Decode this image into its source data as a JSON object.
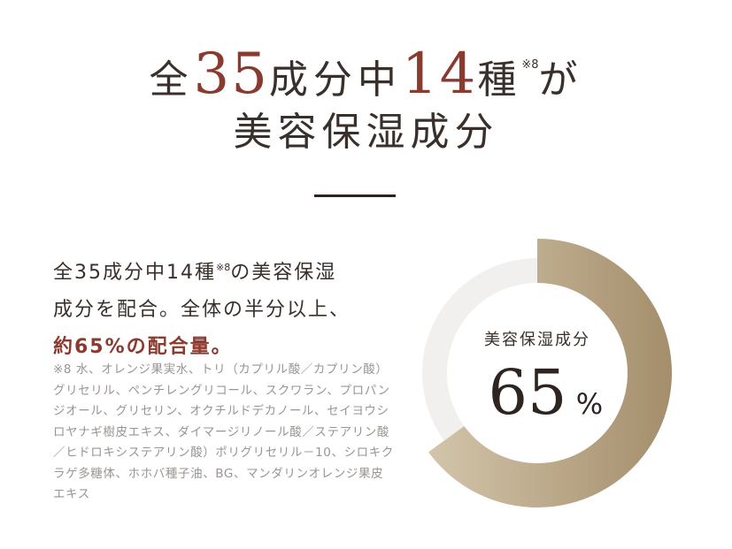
{
  "headline": {
    "line1_prefix": "全",
    "total_count": "35",
    "line1_mid": "成分中",
    "moisture_count": "14",
    "line1_suffix": "種",
    "note_mark": "※8",
    "line1_end": "が",
    "line2": "美容保湿成分"
  },
  "lead": {
    "line1_a": "全35成分中14種",
    "note_mark": "※8",
    "line1_b": "の美容保湿",
    "line2": "成分を配合。全体の半分以上、",
    "line3": "約65%の配合量。"
  },
  "footnote": "※8 水、オレンジ果実水、トリ（カプリル酸／カプリン酸）グリセリル、ペンチレングリコール、スクワラン、プロパンジオール、グリセリン、オクチルドデカノール、セイヨウシロヤナギ樹皮エキス、ダイマージリノール酸／ステアリン酸／ヒドロキシステアリン酸）ポリグリセリル－10、シロキクラゲ多糖体、ホホバ種子油、BG、マンダリンオレンジ果皮エキス",
  "chart_data": {
    "type": "pie",
    "style": "donut",
    "center_label": "美容保湿成分",
    "center_value": "65",
    "center_unit": "%",
    "values": [
      65,
      35
    ],
    "colors": [
      "#b3a07f",
      "#f1f0ee"
    ]
  }
}
